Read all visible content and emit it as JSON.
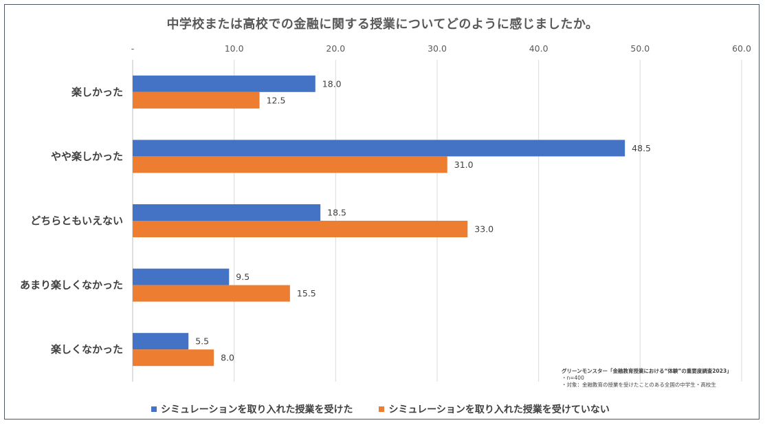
{
  "chart_data": {
    "type": "bar",
    "orientation": "horizontal",
    "title": "中学校または高校での金融に関する授業についてどのように感じましたか。",
    "categories": [
      "楽しかった",
      "やや楽しかった",
      "どちらともいえない",
      "あまり楽しくなかった",
      "楽しくなかった"
    ],
    "series": [
      {
        "name": "シミュレーションを取り入れた授業を受けた",
        "color": "#4472C4",
        "values": [
          18.0,
          48.5,
          18.5,
          9.5,
          5.5
        ]
      },
      {
        "name": "シミュレーションを取り入れた授業を受けていない",
        "color": "#ED7D31",
        "values": [
          12.5,
          31.0,
          33.0,
          15.5,
          8.0
        ]
      }
    ],
    "xlim": [
      0,
      60
    ],
    "ticks": [
      0,
      10,
      20,
      30,
      40,
      50,
      60
    ],
    "tick_labels": [
      "-",
      "10.0",
      "20.0",
      "30.0",
      "40.0",
      "50.0",
      "60.0"
    ],
    "axis_position": "top",
    "grid": true,
    "legend_position": "bottom",
    "xlabel": "",
    "ylabel": ""
  },
  "source": {
    "title": "グリーンモンスター「金融教育授業における“体験”の重要度調査2023」",
    "sample": "・n=400",
    "target": "・対象：金融教育の授業を受けたことのある全国の中学生・高校生"
  }
}
